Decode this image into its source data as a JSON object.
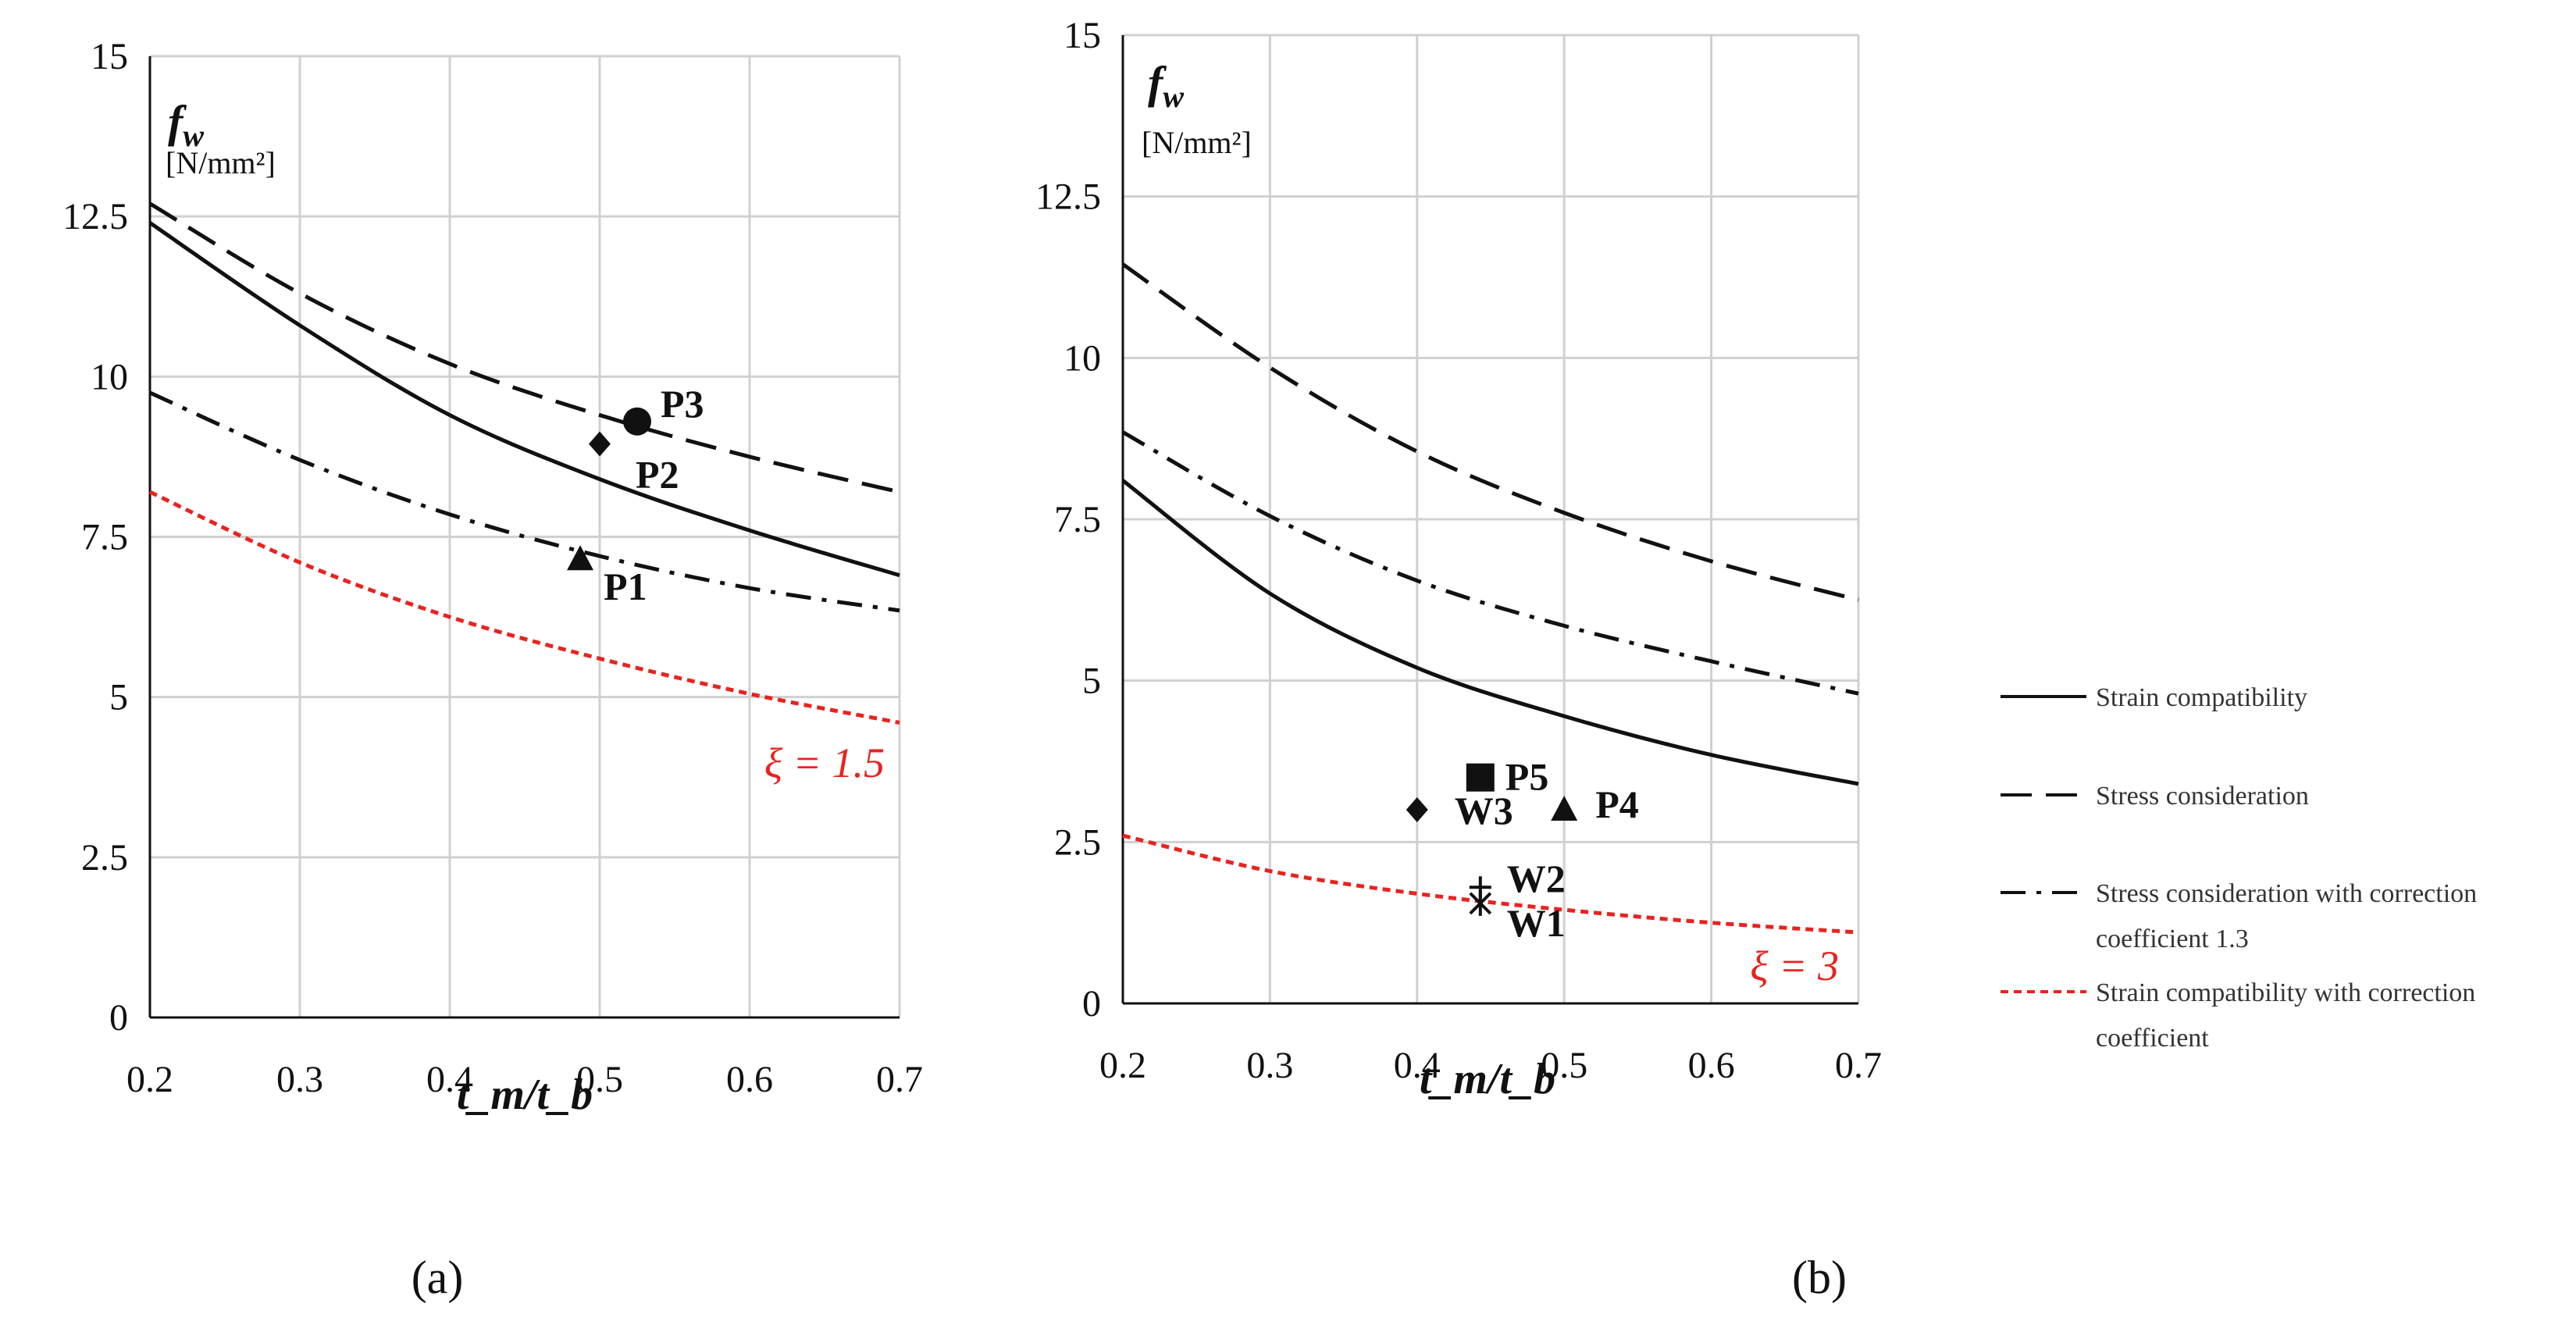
{
  "chart_data": [
    {
      "type": "line",
      "panel_label": "(a)",
      "y_label": "f_w",
      "y_symbol": "f",
      "y_symbol_sub": "w",
      "y_unit": "[N/mm²]",
      "x_label": "t_m/t_b",
      "xlim": [
        0.2,
        0.7
      ],
      "ylim": [
        0,
        15
      ],
      "x_ticks": [
        0.2,
        0.3,
        0.4,
        0.5,
        0.6,
        0.7
      ],
      "y_ticks": [
        0,
        2.5,
        5,
        7.5,
        10,
        12.5,
        15
      ],
      "x_tick_labels": [
        "0.2",
        "0.3",
        "0.4",
        "0.5",
        "0.6",
        "0.7"
      ],
      "y_tick_labels": [
        "0",
        "2.5",
        "5",
        "7.5",
        "10",
        "12.5",
        "15"
      ],
      "series": [
        {
          "name": "Strain compatibility",
          "style": "solid",
          "x": [
            0.2,
            0.3,
            0.4,
            0.5,
            0.6,
            0.7
          ],
          "values": [
            12.4,
            10.8,
            9.4,
            8.4,
            7.6,
            6.9
          ]
        },
        {
          "name": "Stress consideration",
          "style": "dashed",
          "x": [
            0.2,
            0.3,
            0.4,
            0.5,
            0.6,
            0.7
          ],
          "values": [
            12.7,
            11.3,
            10.2,
            9.4,
            8.75,
            8.2
          ]
        },
        {
          "name": "Stress consideration with correction coefficient 1.3",
          "style": "dashdot",
          "x": [
            0.2,
            0.3,
            0.4,
            0.5,
            0.6,
            0.7
          ],
          "values": [
            9.75,
            8.7,
            7.85,
            7.2,
            6.7,
            6.35
          ]
        },
        {
          "name": "Strain compatibility with correction coefficient",
          "style": "dotted-red",
          "x": [
            0.2,
            0.3,
            0.4,
            0.5,
            0.6,
            0.7
          ],
          "values": [
            8.2,
            7.1,
            6.25,
            5.6,
            5.05,
            4.6
          ]
        }
      ],
      "points": [
        {
          "label": "P3",
          "marker": "circle",
          "x": 0.525,
          "y": 9.3
        },
        {
          "label": "P2",
          "marker": "diamond",
          "x": 0.5,
          "y": 8.95
        },
        {
          "label": "P1",
          "marker": "triangle",
          "x": 0.487,
          "y": 7.15
        }
      ],
      "annotation": "ξ = 1.5"
    },
    {
      "type": "line",
      "panel_label": "(b)",
      "y_label": "f_w",
      "y_symbol": "f",
      "y_symbol_sub": "w",
      "y_unit": "[N/mm²]",
      "x_label": "t_m/t_b",
      "xlim": [
        0.2,
        0.7
      ],
      "ylim": [
        0,
        15
      ],
      "x_ticks": [
        0.2,
        0.3,
        0.4,
        0.5,
        0.6,
        0.7
      ],
      "y_ticks": [
        0,
        2.5,
        5,
        7.5,
        10,
        12.5,
        15
      ],
      "x_tick_labels": [
        "0.2",
        "0.3",
        "0.4",
        "0.5",
        "0.6",
        "0.7"
      ],
      "y_tick_labels": [
        "0",
        "2.5",
        "5",
        "7.5",
        "10",
        "12.5",
        "15"
      ],
      "series": [
        {
          "name": "Strain compatibility",
          "style": "solid",
          "x": [
            0.2,
            0.3,
            0.4,
            0.5,
            0.6,
            0.7
          ],
          "values": [
            8.1,
            6.35,
            5.2,
            4.45,
            3.85,
            3.4
          ]
        },
        {
          "name": "Stress consideration",
          "style": "dashed",
          "x": [
            0.2,
            0.3,
            0.4,
            0.5,
            0.6,
            0.7
          ],
          "values": [
            11.45,
            9.85,
            8.55,
            7.6,
            6.85,
            6.25
          ]
        },
        {
          "name": "Stress consideration with correction coefficient 1.3",
          "style": "dashdot",
          "x": [
            0.2,
            0.3,
            0.4,
            0.5,
            0.6,
            0.7
          ],
          "values": [
            8.85,
            7.55,
            6.55,
            5.85,
            5.3,
            4.8
          ]
        },
        {
          "name": "Strain compatibility with correction coefficient",
          "style": "dotted-red",
          "x": [
            0.2,
            0.3,
            0.4,
            0.5,
            0.6,
            0.7
          ],
          "values": [
            2.6,
            2.05,
            1.7,
            1.45,
            1.25,
            1.1
          ]
        }
      ],
      "points": [
        {
          "label": "P5",
          "marker": "square",
          "x": 0.443,
          "y": 3.5
        },
        {
          "label": "P4",
          "marker": "triangle",
          "x": 0.5,
          "y": 3.0
        },
        {
          "label": "W3",
          "marker": "diamond",
          "x": 0.4,
          "y": 3.0
        },
        {
          "label": "W2",
          "marker": "plus",
          "x": 0.443,
          "y": 1.8
        },
        {
          "label": "W1",
          "marker": "asterisk",
          "x": 0.443,
          "y": 1.55
        }
      ],
      "annotation": "ξ = 3"
    }
  ],
  "legend": {
    "position": "right",
    "entries": [
      {
        "style": "solid",
        "lines": [
          "Strain compatibility"
        ]
      },
      {
        "style": "dashed",
        "lines": [
          "Stress consideration"
        ]
      },
      {
        "style": "dashdot",
        "lines": [
          "Stress consideration with correction",
          "coefficient 1.3"
        ]
      },
      {
        "style": "dotted-red",
        "lines": [
          "Strain compatibility with correction",
          "coefficient"
        ]
      }
    ]
  },
  "colors": {
    "curve": "#111111",
    "red": "#e8231f",
    "grid": "#d0d0d0"
  }
}
